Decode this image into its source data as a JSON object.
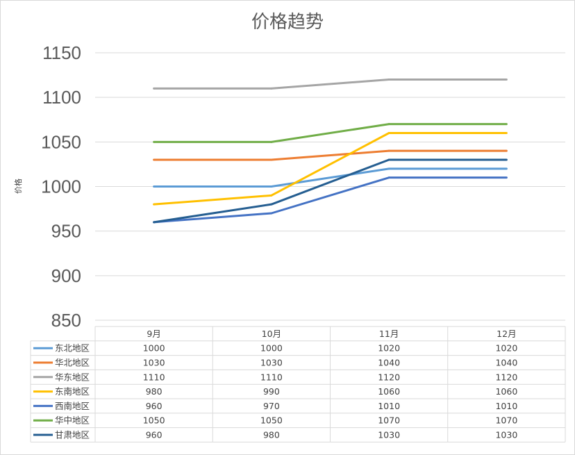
{
  "chart_data": {
    "type": "line",
    "title": "价格趋势",
    "ylabel": "价格",
    "xlabel": "",
    "ylim": [
      850,
      1150
    ],
    "yticks": [
      850,
      900,
      950,
      1000,
      1050,
      1100,
      1150
    ],
    "grid": true,
    "legend": "data-table",
    "categories": [
      "9月",
      "10月",
      "11月",
      "12月"
    ],
    "series": [
      {
        "name": "东北地区",
        "color": "#5b9bd5",
        "values": [
          1000,
          1000,
          1020,
          1020
        ]
      },
      {
        "name": "华北地区",
        "color": "#ed7d31",
        "values": [
          1030,
          1030,
          1040,
          1040
        ]
      },
      {
        "name": "华东地区",
        "color": "#a5a5a5",
        "values": [
          1110,
          1110,
          1120,
          1120
        ]
      },
      {
        "name": "东南地区",
        "color": "#ffc000",
        "values": [
          980,
          990,
          1060,
          1060
        ]
      },
      {
        "name": "西南地区",
        "color": "#4472c4",
        "values": [
          960,
          970,
          1010,
          1010
        ]
      },
      {
        "name": "华中地区",
        "color": "#70ad47",
        "values": [
          1050,
          1050,
          1070,
          1070
        ]
      },
      {
        "name": "甘肃地区",
        "color": "#255e91",
        "values": [
          960,
          980,
          1030,
          1030
        ]
      }
    ]
  }
}
